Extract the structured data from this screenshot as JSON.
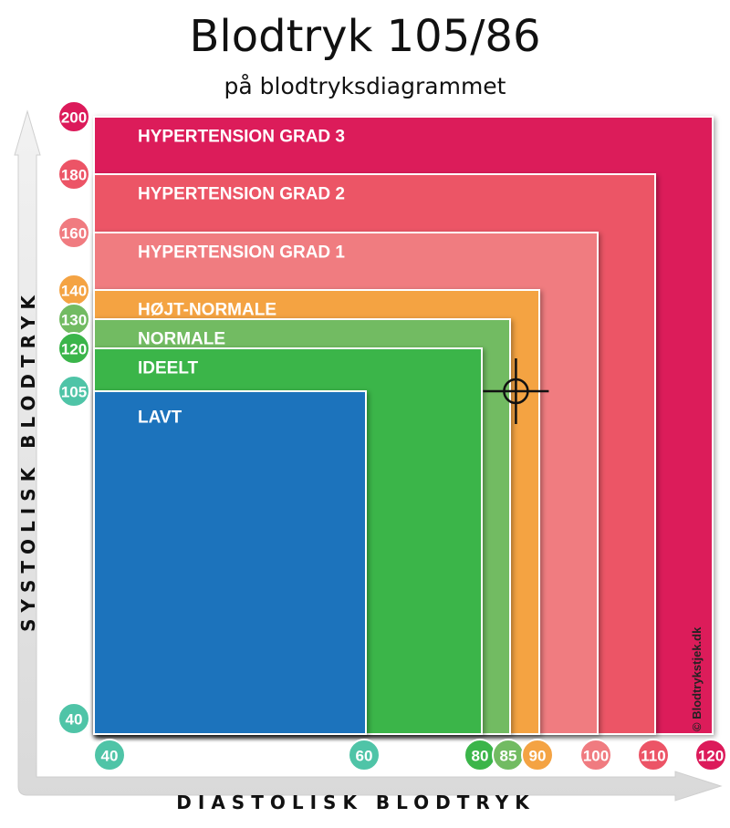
{
  "title": "Blodtryk 105/86",
  "subtitle": "på blodtryksdiagrammet",
  "credit": "© Blodtrykstjek.dk",
  "chart_data": {
    "type": "area",
    "xlabel": "DIASTOLISK  BLODTRYK",
    "ylabel": "SYSTOLISK  BLODTRYK",
    "zones": [
      {
        "label": "HYPERTENSION GRAD 3",
        "x_max": 120,
        "y_max": 200,
        "color": "#dc1a5a"
      },
      {
        "label": "HYPERTENSION GRAD 2",
        "x_max": 110,
        "y_max": 180,
        "color": "#ec5466"
      },
      {
        "label": "HYPERTENSION GRAD 1",
        "x_max": 100,
        "y_max": 160,
        "color": "#f07b80"
      },
      {
        "label": "HØJT-NORMALE",
        "x_max": 90,
        "y_max": 140,
        "color": "#f4a343"
      },
      {
        "label": "NORMALE",
        "x_max": 85,
        "y_max": 130,
        "color": "#72bb62"
      },
      {
        "label": "IDEELT",
        "x_max": 80,
        "y_max": 120,
        "color": "#3bb54a"
      },
      {
        "label": "LAVT",
        "x_max": 60,
        "y_max": 105,
        "color": "#1f73bc"
      }
    ],
    "x_ticks": [
      {
        "label": "40",
        "value": 40,
        "color": "#4fc4a7"
      },
      {
        "label": "60",
        "value": 60,
        "color": "#4fc4a7"
      },
      {
        "label": "80",
        "value": 80,
        "color": "#3bb54a"
      },
      {
        "label": "85",
        "value": 85,
        "color": "#72bb62"
      },
      {
        "label": "90",
        "value": 90,
        "color": "#f4a343"
      },
      {
        "label": "100",
        "value": 100,
        "color": "#f07b80"
      },
      {
        "label": "110",
        "value": 110,
        "color": "#ec5466"
      },
      {
        "label": "120",
        "value": 120,
        "color": "#dc1a5a"
      }
    ],
    "y_ticks": [
      {
        "label": "200",
        "value": 200,
        "color": "#dc1a5a"
      },
      {
        "label": "180",
        "value": 180,
        "color": "#ec5466"
      },
      {
        "label": "160",
        "value": 160,
        "color": "#f07b80"
      },
      {
        "label": "140",
        "value": 140,
        "color": "#f4a343"
      },
      {
        "label": "130",
        "value": 130,
        "color": "#72bb62"
      },
      {
        "label": "120",
        "value": 120,
        "color": "#3bb54a"
      },
      {
        "label": "105",
        "value": 105,
        "color": "#4fc4a7"
      },
      {
        "label": "40",
        "value": 40,
        "color": "#4fc4a7"
      }
    ],
    "marker": {
      "systolic": 105,
      "diastolic": 86
    }
  }
}
